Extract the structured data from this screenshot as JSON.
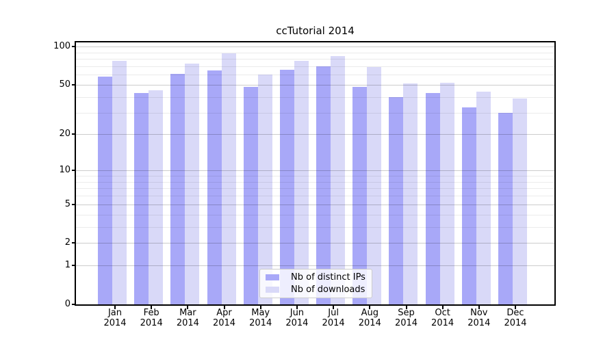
{
  "chart_data": {
    "type": "bar",
    "title": "ccTutorial 2014",
    "categories": [
      "Jan 2014",
      "Feb 2014",
      "Mar 2014",
      "Apr 2014",
      "May 2014",
      "Jun 2014",
      "Jul 2014",
      "Aug 2014",
      "Sep 2014",
      "Oct 2014",
      "Nov 2014",
      "Dec 2014"
    ],
    "series": [
      {
        "name": "Nb of distinct IPs",
        "color": "#a8a8f8",
        "values": [
          58,
          43,
          61,
          65,
          48,
          66,
          70,
          48,
          40,
          43,
          33,
          30
        ]
      },
      {
        "name": "Nb of downloads",
        "color": "#d9d9f8",
        "values": [
          77,
          45,
          74,
          89,
          60,
          77,
          84,
          69,
          51,
          52,
          44,
          39
        ]
      }
    ],
    "xlabel": "",
    "ylabel": "",
    "yscale": "log10(1+y)",
    "ylim": [
      0,
      108
    ],
    "y_major_ticks": [
      100,
      50,
      20,
      10,
      5,
      2,
      1,
      0
    ],
    "y_minor_ticks": [
      90,
      80,
      70,
      60,
      40,
      30,
      9,
      8,
      7,
      6,
      4,
      3
    ],
    "grid": "both, drawn over bars",
    "legend_position": "lower center inside axes"
  }
}
